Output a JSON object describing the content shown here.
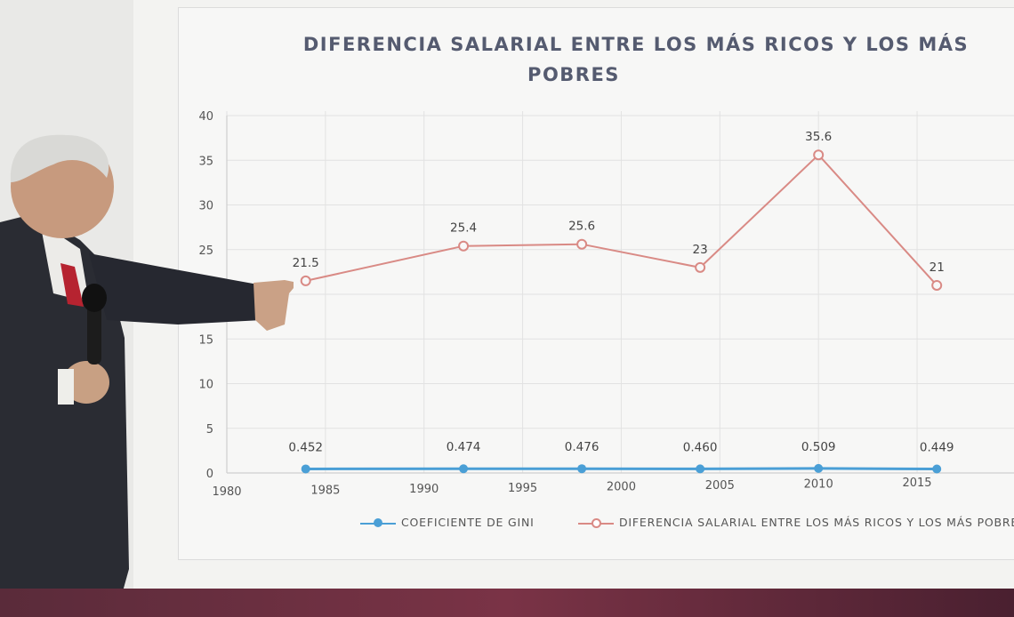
{
  "chart_data": {
    "type": "line",
    "title": "DIFERENCIA SALARIAL ENTRE LOS MÁS RICOS Y LOS MÁS POBRES",
    "title_line1": "DIFERENCIA SALARIAL ENTRE LOS MÁS RICOS Y LOS MÁS",
    "title_line2": "POBRES",
    "xlabel": "",
    "ylabel": "",
    "xlim": [
      1980,
      2020
    ],
    "ylim": [
      0,
      40
    ],
    "x_ticks": [
      "1980",
      "1985",
      "1990",
      "1995",
      "2000",
      "2005",
      "2010",
      "2015"
    ],
    "y_ticks": [
      "0",
      "5",
      "10",
      "15",
      "20",
      "25",
      "30",
      "35",
      "40"
    ],
    "grid": true,
    "legend_position": "bottom",
    "series": [
      {
        "name": "COEFICIENTE DE GINI",
        "color": "#4a9fd6",
        "x": [
          1984,
          1992,
          1998,
          2004,
          2010,
          2016
        ],
        "values": [
          0.452,
          0.474,
          0.476,
          0.46,
          0.509,
          0.449
        ],
        "labels": [
          "0.452",
          "0.474",
          "0.476",
          "0.460",
          "0.509",
          "0.449"
        ]
      },
      {
        "name": "DIFERENCIA SALARIAL ENTRE LOS MÁS RICOS Y LOS MÁS POBRES",
        "color": "#d98a85",
        "x": [
          1984,
          1992,
          1998,
          2004,
          2010,
          2016
        ],
        "values": [
          21.5,
          25.4,
          25.6,
          23,
          35.6,
          21
        ],
        "labels": [
          "21.5",
          "25.4",
          "25.6",
          "23",
          "35.6",
          "21"
        ]
      }
    ]
  },
  "colors": {
    "gini": "#4a9fd6",
    "salary_gap": "#d98a85",
    "title": "#555b70",
    "grid": "#dedede",
    "bottom_strip": "#6a2e40"
  }
}
